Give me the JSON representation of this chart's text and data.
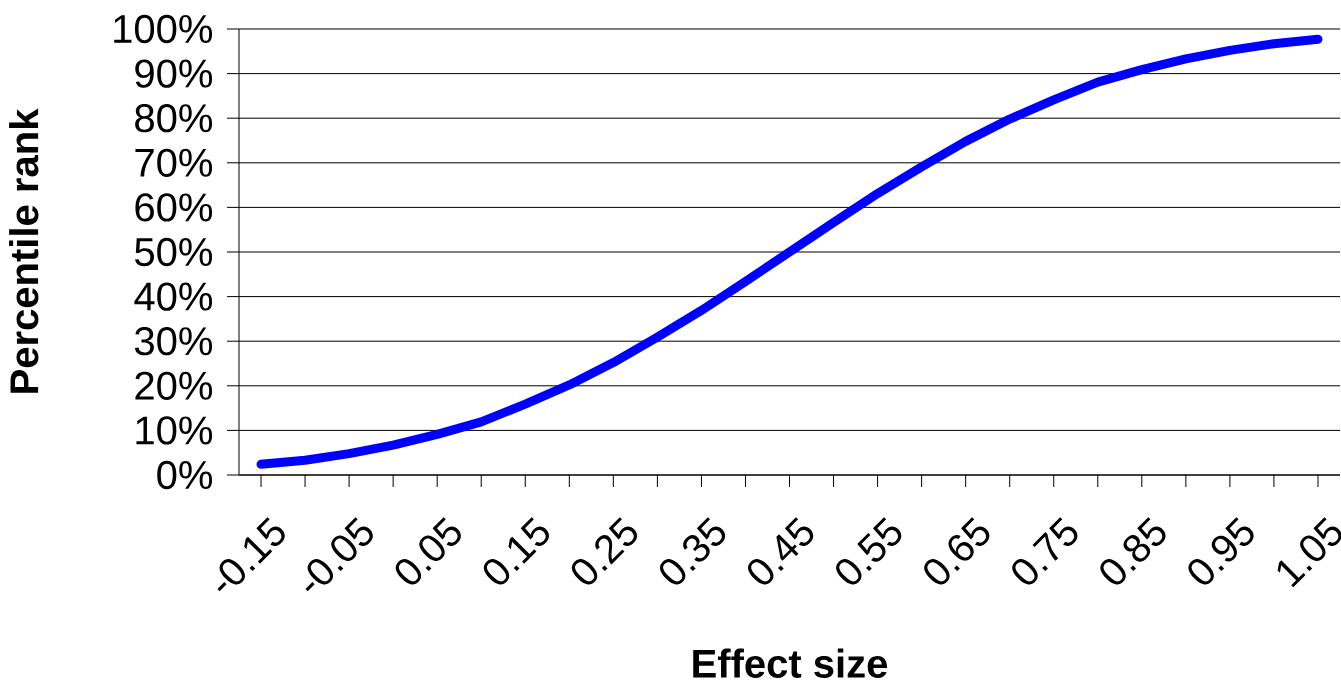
{
  "chart_data": {
    "type": "line",
    "xlabel": "Effect size",
    "ylabel": "Percentile rank",
    "categories": [
      "-0.15",
      null,
      "-0.05",
      null,
      "0.05",
      null,
      "0.15",
      null,
      "0.25",
      null,
      "0.35",
      null,
      "0.45",
      null,
      "0.55",
      null,
      "0.65",
      null,
      "0.75",
      null,
      "0.85",
      null,
      "0.95",
      null,
      "1.05"
    ],
    "values": [
      2.4,
      3.3,
      4.8,
      6.7,
      9.1,
      11.9,
      15.9,
      20.2,
      25.2,
      30.9,
      36.9,
      43.4,
      50,
      56.6,
      63.1,
      69.1,
      74.8,
      79.8,
      84.1,
      88.1,
      90.9,
      93.3,
      95.2,
      96.7,
      97.7
    ],
    "color": "#0000ff",
    "ylim": [
      0,
      100
    ],
    "yticks": [
      {
        "value": 0,
        "label": "0%"
      },
      {
        "value": 10,
        "label": "10%"
      },
      {
        "value": 20,
        "label": "20%"
      },
      {
        "value": 30,
        "label": "30%"
      },
      {
        "value": 40,
        "label": "40%"
      },
      {
        "value": 50,
        "label": "50%"
      },
      {
        "value": 60,
        "label": "60%"
      },
      {
        "value": 70,
        "label": "70%"
      },
      {
        "value": 80,
        "label": "80%"
      },
      {
        "value": 90,
        "label": "90%"
      },
      {
        "value": 100,
        "label": "100%"
      }
    ],
    "grid": "y"
  }
}
